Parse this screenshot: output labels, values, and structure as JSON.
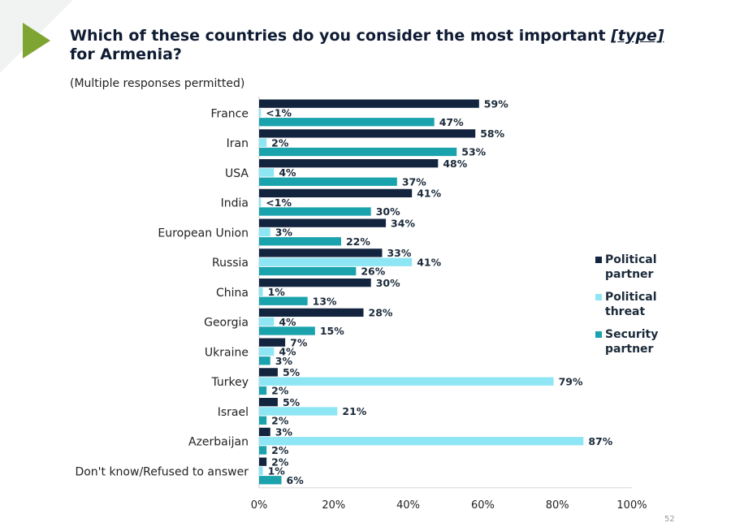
{
  "slide": {
    "title_main": "Which of these countries do you consider the most important ",
    "title_emph": "[type]",
    "title_end": " for Armenia?",
    "subtitle": "(Multiple responses permitted)",
    "page_number": "52",
    "arrow_color": "#7ea431"
  },
  "chart_data": {
    "type": "bar",
    "orientation": "horizontal",
    "categories": [
      "France",
      "Iran",
      "USA",
      "India",
      "European Union",
      "Russia",
      "China",
      "Georgia",
      "Ukraine",
      "Turkey",
      "Israel",
      "Azerbaijan",
      "Don't know/Refused to answer"
    ],
    "series": [
      {
        "name": "Political partner",
        "color": "#13243f",
        "values": [
          59,
          58,
          48,
          41,
          34,
          33,
          30,
          28,
          7,
          5,
          5,
          3,
          2
        ],
        "labels": [
          "59%",
          "58%",
          "48%",
          "41%",
          "34%",
          "33%",
          "30%",
          "28%",
          "7%",
          "5%",
          "5%",
          "3%",
          "2%"
        ]
      },
      {
        "name": "Political threat",
        "color": "#8ee6f5",
        "values": [
          0.5,
          2,
          4,
          0.5,
          3,
          41,
          1,
          4,
          4,
          79,
          21,
          87,
          1
        ],
        "labels": [
          "<1%",
          "2%",
          "4%",
          "<1%",
          "3%",
          "41%",
          "1%",
          "4%",
          "4%",
          "79%",
          "21%",
          "87%",
          "1%"
        ]
      },
      {
        "name": "Security partner",
        "color": "#1aa2ad",
        "values": [
          47,
          53,
          37,
          30,
          22,
          26,
          13,
          15,
          3,
          2,
          2,
          2,
          6
        ],
        "labels": [
          "47%",
          "53%",
          "37%",
          "30%",
          "22%",
          "26%",
          "13%",
          "15%",
          "3%",
          "2%",
          "2%",
          "2%",
          "6%"
        ]
      }
    ],
    "xlim": [
      0,
      100
    ],
    "xticks": [
      0,
      20,
      40,
      60,
      80,
      100
    ],
    "xtick_labels": [
      "0%",
      "20%",
      "40%",
      "60%",
      "80%",
      "100%"
    ],
    "legend": {
      "position": "right",
      "items": [
        {
          "label": "Political partner",
          "line1": "Political",
          "line2": "partner",
          "color": "#13243f"
        },
        {
          "label": "Political threat",
          "line1": "Political",
          "line2": "threat",
          "color": "#8ee6f5"
        },
        {
          "label": "Security partner",
          "line1": "Security",
          "line2": "partner",
          "color": "#1aa2ad"
        }
      ]
    }
  }
}
